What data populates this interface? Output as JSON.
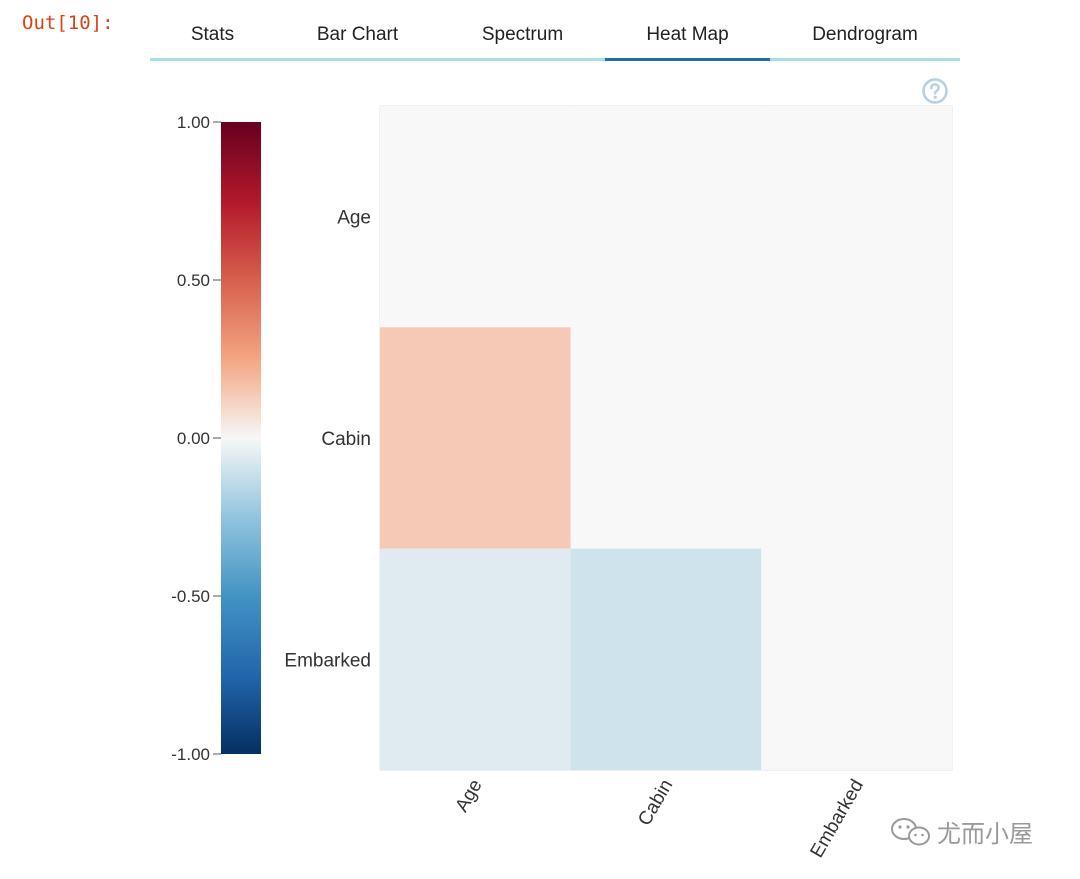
{
  "cell": {
    "prompt": "Out[10]:"
  },
  "tabs": [
    {
      "label": "Stats",
      "active": false
    },
    {
      "label": "Bar Chart",
      "active": false
    },
    {
      "label": "Spectrum",
      "active": false
    },
    {
      "label": "Heat Map",
      "active": true
    },
    {
      "label": "Dendrogram",
      "active": false
    }
  ],
  "help_icon": "question-circle-icon",
  "chart_data": {
    "type": "heatmap",
    "rows": [
      "Age",
      "Cabin",
      "Embarked"
    ],
    "columns": [
      "Age",
      "Cabin",
      "Embarked"
    ],
    "values": [
      [
        0.0,
        null,
        null
      ],
      [
        0.14,
        0.0,
        null
      ],
      [
        -0.06,
        -0.1,
        0.0
      ]
    ],
    "colorscale": {
      "min": -1.0,
      "max": 1.0,
      "tick_labels": [
        "1.00",
        "0.50",
        "0.00",
        "-0.50",
        "-1.00"
      ],
      "tick_values": [
        1.0,
        0.5,
        0.0,
        -0.5,
        -1.0
      ],
      "colormap": "RdBu_r"
    },
    "missing_color": "#f8f8f8"
  },
  "watermark": {
    "text": "尤而小屋",
    "icon": "wechat-icon"
  }
}
